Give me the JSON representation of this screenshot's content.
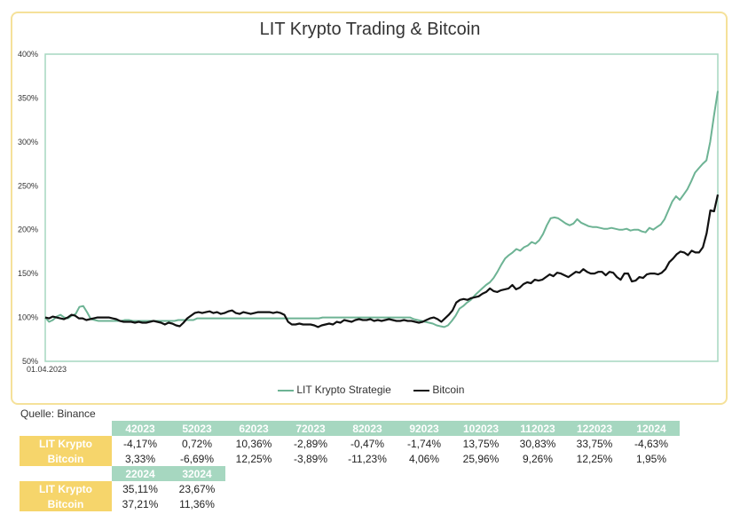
{
  "chart_data": {
    "type": "line",
    "title": "LIT Krypto Trading & Bitcoin",
    "x_start_label": "01.04.2023",
    "ylim": [
      50,
      400
    ],
    "yticks": [
      "50%",
      "100%",
      "150%",
      "200%",
      "250%",
      "300%",
      "350%",
      "400%"
    ],
    "ytick_values": [
      50,
      100,
      150,
      200,
      250,
      300,
      350,
      400
    ],
    "series": [
      {
        "name": "LIT Krypto Strategie",
        "color": "#6db394",
        "values": [
          100,
          95,
          97,
          101,
          103,
          100,
          99,
          102,
          104,
          112,
          113,
          106,
          98,
          97,
          96,
          96,
          96,
          96,
          96,
          96,
          96,
          97,
          97,
          96,
          96,
          96,
          96,
          96,
          96,
          96,
          96,
          96,
          96,
          96,
          96,
          97,
          97,
          97,
          97,
          97,
          99,
          99,
          99,
          99,
          99,
          99,
          99,
          99,
          99,
          99,
          99,
          99,
          99,
          99,
          99,
          99,
          99,
          99,
          99,
          99,
          99,
          99,
          99,
          99,
          99,
          99,
          99,
          99,
          99,
          99,
          99,
          99,
          99,
          100,
          100,
          100,
          100,
          100,
          100,
          100,
          100,
          100,
          100,
          100,
          100,
          100,
          100,
          100,
          100,
          100,
          100,
          100,
          100,
          100,
          100,
          100,
          100,
          98,
          97,
          96,
          95,
          94,
          93,
          91,
          90,
          89,
          91,
          96,
          102,
          110,
          113,
          117,
          120,
          125,
          129,
          133,
          137,
          140,
          145,
          152,
          160,
          167,
          171,
          174,
          178,
          176,
          180,
          182,
          186,
          184,
          188,
          195,
          205,
          213,
          214,
          213,
          210,
          207,
          205,
          207,
          212,
          208,
          206,
          204,
          203,
          203,
          202,
          201,
          201,
          202,
          201,
          200,
          200,
          201,
          199,
          200,
          200,
          198,
          197,
          202,
          200,
          203,
          206,
          212,
          222,
          232,
          238,
          234,
          240,
          246,
          255,
          265,
          270,
          275,
          279,
          300,
          330,
          358
        ]
      },
      {
        "name": "Bitcoin",
        "color": "#111111",
        "values": [
          100,
          99,
          101,
          100,
          99,
          98,
          100,
          103,
          102,
          99,
          99,
          97,
          98,
          99,
          100,
          100,
          100,
          100,
          99,
          98,
          96,
          95,
          95,
          95,
          94,
          95,
          94,
          94,
          95,
          96,
          95,
          94,
          92,
          94,
          93,
          91,
          90,
          94,
          99,
          102,
          105,
          106,
          105,
          106,
          107,
          105,
          106,
          104,
          105,
          107,
          108,
          105,
          104,
          106,
          105,
          104,
          105,
          106,
          106,
          106,
          106,
          105,
          106,
          105,
          103,
          95,
          92,
          92,
          93,
          92,
          92,
          92,
          91,
          89,
          91,
          92,
          93,
          92,
          95,
          94,
          97,
          96,
          95,
          97,
          98,
          97,
          97,
          98,
          96,
          97,
          96,
          97,
          98,
          97,
          96,
          96,
          97,
          96,
          96,
          95,
          94,
          95,
          97,
          99,
          100,
          98,
          95,
          99,
          103,
          108,
          117,
          120,
          121,
          120,
          122,
          123,
          124,
          127,
          129,
          133,
          130,
          129,
          131,
          132,
          133,
          137,
          132,
          134,
          138,
          140,
          139,
          143,
          142,
          143,
          146,
          149,
          147,
          151,
          150,
          148,
          146,
          149,
          152,
          151,
          155,
          152,
          150,
          150,
          152,
          152,
          148,
          152,
          151,
          146,
          143,
          150,
          150,
          141,
          142,
          146,
          145,
          149,
          150,
          150,
          149,
          151,
          155,
          163,
          167,
          172,
          175,
          174,
          171,
          176,
          174,
          174,
          180,
          196,
          222,
          221,
          240
        ]
      }
    ]
  },
  "source_label": "Quelle: Binance",
  "table1": {
    "headers": [
      "42023",
      "52023",
      "62023",
      "72023",
      "82023",
      "92023",
      "102023",
      "112023",
      "122023",
      "12024"
    ],
    "rows": [
      {
        "label": "LIT Krypto",
        "cells": [
          "-4,17%",
          "0,72%",
          "10,36%",
          "-2,89%",
          "-0,47%",
          "-1,74%",
          "13,75%",
          "30,83%",
          "33,75%",
          "-4,63%"
        ]
      },
      {
        "label": "Bitcoin",
        "cells": [
          "3,33%",
          "-6,69%",
          "12,25%",
          "-3,89%",
          "-11,23%",
          "4,06%",
          "25,96%",
          "9,26%",
          "12,25%",
          "1,95%"
        ]
      }
    ]
  },
  "table2": {
    "headers": [
      "22024",
      "32024"
    ],
    "rows": [
      {
        "label": "LIT Krypto",
        "cells": [
          "35,11%",
          "23,67%"
        ]
      },
      {
        "label": "Bitcoin",
        "cells": [
          "37,21%",
          "11,36%"
        ]
      }
    ]
  }
}
